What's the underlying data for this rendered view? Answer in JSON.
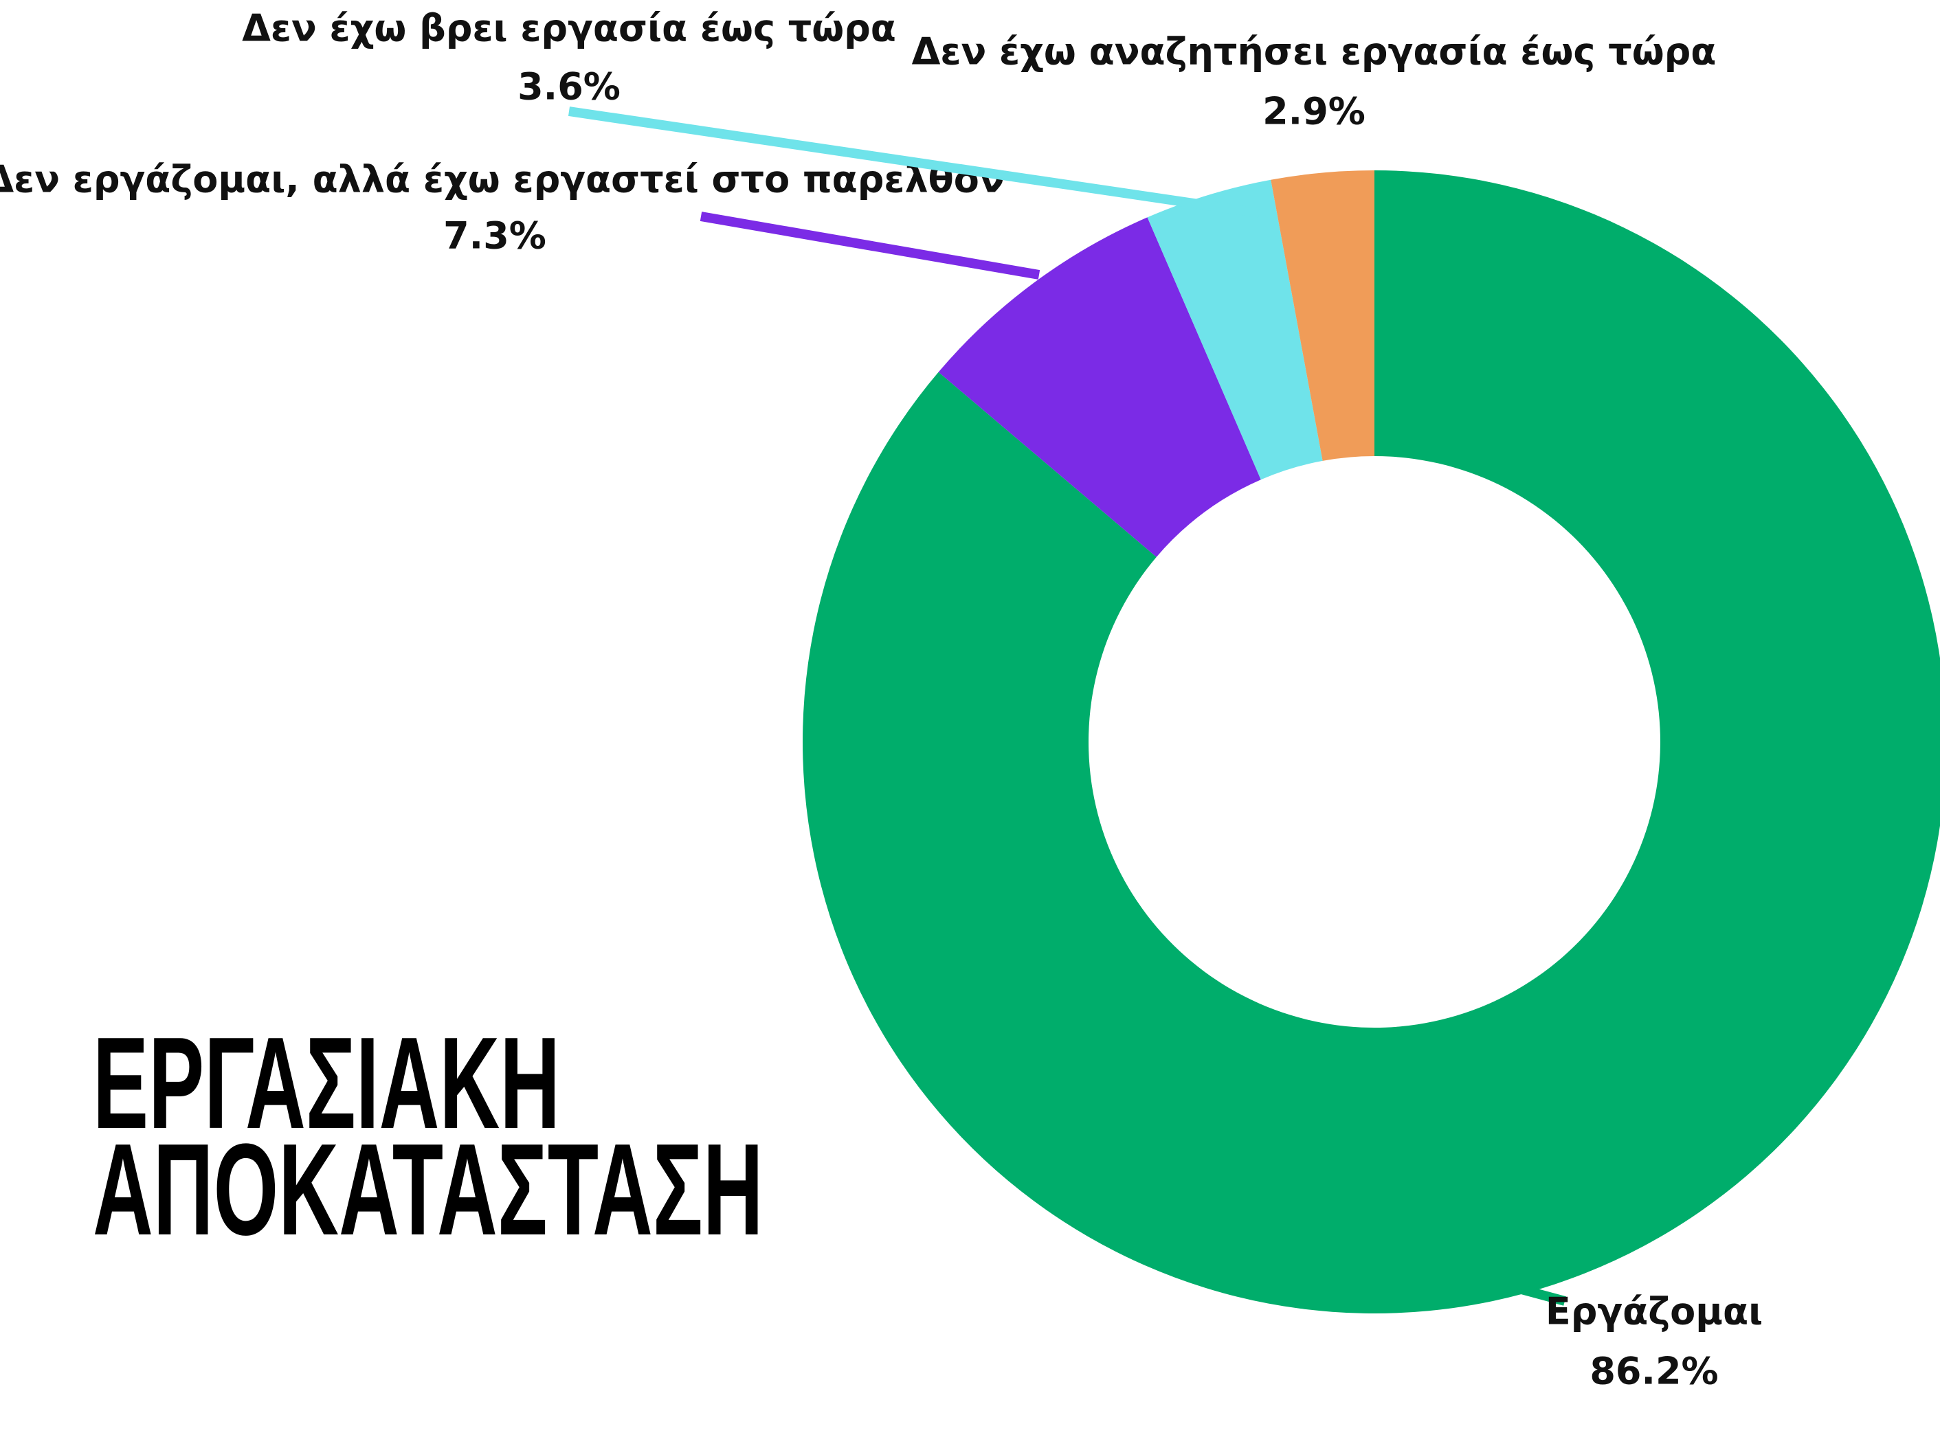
{
  "chart_data": {
    "type": "donut",
    "title": "ΕΡΓΑΣΙΑΚΗ ΑΠΟΚΑΤΑΣΤΑΣΗ",
    "categories": [
      "Εργάζομαι",
      "Δεν εργάζομαι, αλλά έχω εργαστεί στο παρελθον",
      "Δεν έχω βρει εργασία έως τώρα",
      "Δεν έχω αναζητήσει εργασία έως τώρα"
    ],
    "values": [
      86.2,
      7.3,
      3.6,
      2.9
    ],
    "value_labels": [
      "86.2%",
      "7.3%",
      "3.6%",
      "2.9%"
    ],
    "colors": [
      "#00ad6b",
      "#7b2be6",
      "#6fe3ea",
      "#f09c58"
    ]
  }
}
